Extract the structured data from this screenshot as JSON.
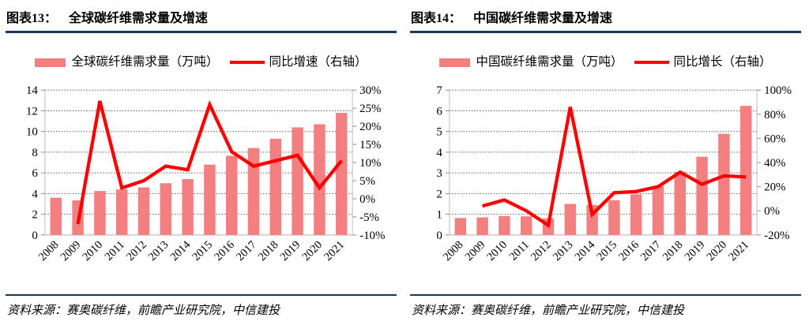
{
  "colors": {
    "bar": "#F47F81",
    "line": "#FF0000",
    "rule": "#17375E",
    "grid": "#595959",
    "axis": "#BFBFBF",
    "tick": "#8C8C8C",
    "text": "#000000"
  },
  "panels": [
    {
      "figure_label": "图表13：",
      "title": "全球碳纤维需求量及增速",
      "legend": {
        "bar_label": "全球碳纤维需求量（万吨）",
        "line_label": "同比增速（右轴）"
      },
      "source_label": "资料来源：",
      "source_text": "赛奥碳纤维，前瞻产业研究院，中信建投",
      "chart_data": {
        "type": "bar+line",
        "title": "全球碳纤维需求量及增速",
        "categories": [
          "2008",
          "2009",
          "2010",
          "2011",
          "2012",
          "2013",
          "2014",
          "2015",
          "2016",
          "2017",
          "2018",
          "2019",
          "2020",
          "2021"
        ],
        "series": [
          {
            "name": "全球碳纤维需求量（万吨）",
            "type": "bar",
            "axis": "left",
            "values": [
              3.6,
              3.35,
              4.25,
              4.4,
              4.6,
              5.0,
              5.4,
              6.8,
              7.65,
              8.4,
              9.3,
              10.4,
              10.7,
              11.8
            ]
          },
          {
            "name": "同比增速（右轴）",
            "type": "line",
            "axis": "right",
            "values": [
              null,
              -7,
              27,
              3,
              5,
              9,
              8,
              26,
              13,
              9,
              10.5,
              12,
              3,
              10.5
            ]
          }
        ],
        "left_axis": {
          "min": 0,
          "max": 14,
          "step": 2,
          "suffix": ""
        },
        "right_axis": {
          "min": -10,
          "max": 30,
          "step": 5,
          "suffix": "%"
        },
        "grid": "horizontal-dotted",
        "legend_position": "top"
      }
    },
    {
      "figure_label": "图表14：",
      "title": "中国碳纤维需求量及增速",
      "legend": {
        "bar_label": "中国碳纤维需求量（万吨）",
        "line_label": "同比增长（右轴）"
      },
      "source_label": "资料来源：",
      "source_text": "赛奥碳纤维，前瞻产业研究院，中信建投",
      "chart_data": {
        "type": "bar+line",
        "title": "中国碳纤维需求量及增速",
        "categories": [
          "2008",
          "2009",
          "2010",
          "2011",
          "2012",
          "2013",
          "2014",
          "2015",
          "2016",
          "2017",
          "2018",
          "2019",
          "2020",
          "2021"
        ],
        "series": [
          {
            "name": "中国碳纤维需求量（万吨）",
            "type": "bar",
            "axis": "left",
            "values": [
              0.82,
              0.85,
              0.91,
              0.9,
              0.8,
              1.5,
              1.45,
              1.68,
              1.96,
              2.35,
              3.05,
              3.78,
              4.89,
              6.24
            ]
          },
          {
            "name": "同比增长（右轴）",
            "type": "line",
            "axis": "right",
            "values": [
              null,
              4,
              9,
              0,
              -12,
              86,
              -3,
              15,
              16,
              20,
              32,
              22,
              29,
              28
            ]
          }
        ],
        "left_axis": {
          "min": 0,
          "max": 7,
          "step": 1,
          "suffix": ""
        },
        "right_axis": {
          "min": -20,
          "max": 100,
          "step": 20,
          "suffix": "%"
        },
        "grid": "horizontal-dotted",
        "legend_position": "top"
      }
    }
  ]
}
